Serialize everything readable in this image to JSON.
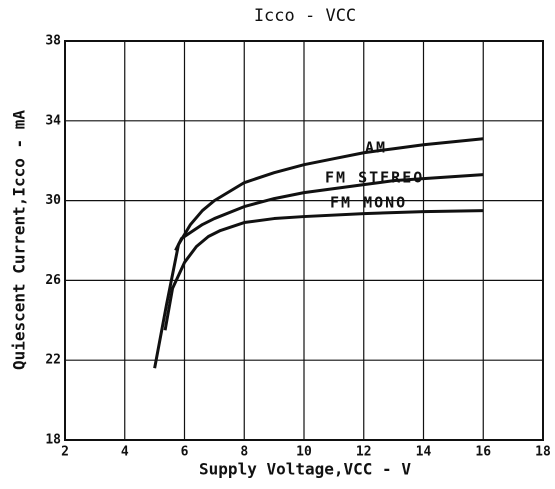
{
  "chart_data": {
    "type": "line",
    "title": "Icco - VCC",
    "x_label": "Supply Voltage,VCC - V",
    "y_label": "Quiescent Current,Icco - mA",
    "xlim": [
      2,
      18
    ],
    "xticks": [
      2,
      4,
      6,
      8,
      10,
      12,
      14,
      16,
      18
    ],
    "ylim": [
      18,
      38
    ],
    "yticks": [
      18,
      22,
      26,
      30,
      34,
      38
    ],
    "grid": true,
    "series": [
      {
        "name": "AM",
        "color": "#111111",
        "x": [
          5.0,
          5.4,
          5.8,
          6.2,
          6.6,
          7,
          8,
          9,
          10,
          11,
          12,
          13,
          14,
          15,
          16
        ],
        "values": [
          21.6,
          24.8,
          27.8,
          28.8,
          29.5,
          30,
          30.9,
          31.4,
          31.8,
          32.1,
          32.4,
          32.6,
          32.8,
          32.95,
          33.1
        ]
      },
      {
        "name": "FM STEREO",
        "color": "#111111",
        "x": [
          5.7,
          5.9,
          6.2,
          6.6,
          7,
          8,
          9,
          10,
          11,
          12,
          13,
          14,
          15,
          16
        ],
        "values": [
          27.5,
          28.1,
          28.4,
          28.8,
          29.1,
          29.7,
          30.1,
          30.4,
          30.6,
          30.8,
          31.0,
          31.1,
          31.2,
          31.3
        ]
      },
      {
        "name": "FM MONO",
        "color": "#111111",
        "x": [
          5.35,
          5.6,
          6,
          6.4,
          6.8,
          7.2,
          8,
          9,
          10,
          12,
          14,
          16
        ],
        "values": [
          23.5,
          25.6,
          26.9,
          27.7,
          28.2,
          28.5,
          28.9,
          29.1,
          29.2,
          29.35,
          29.45,
          29.5
        ]
      }
    ]
  }
}
